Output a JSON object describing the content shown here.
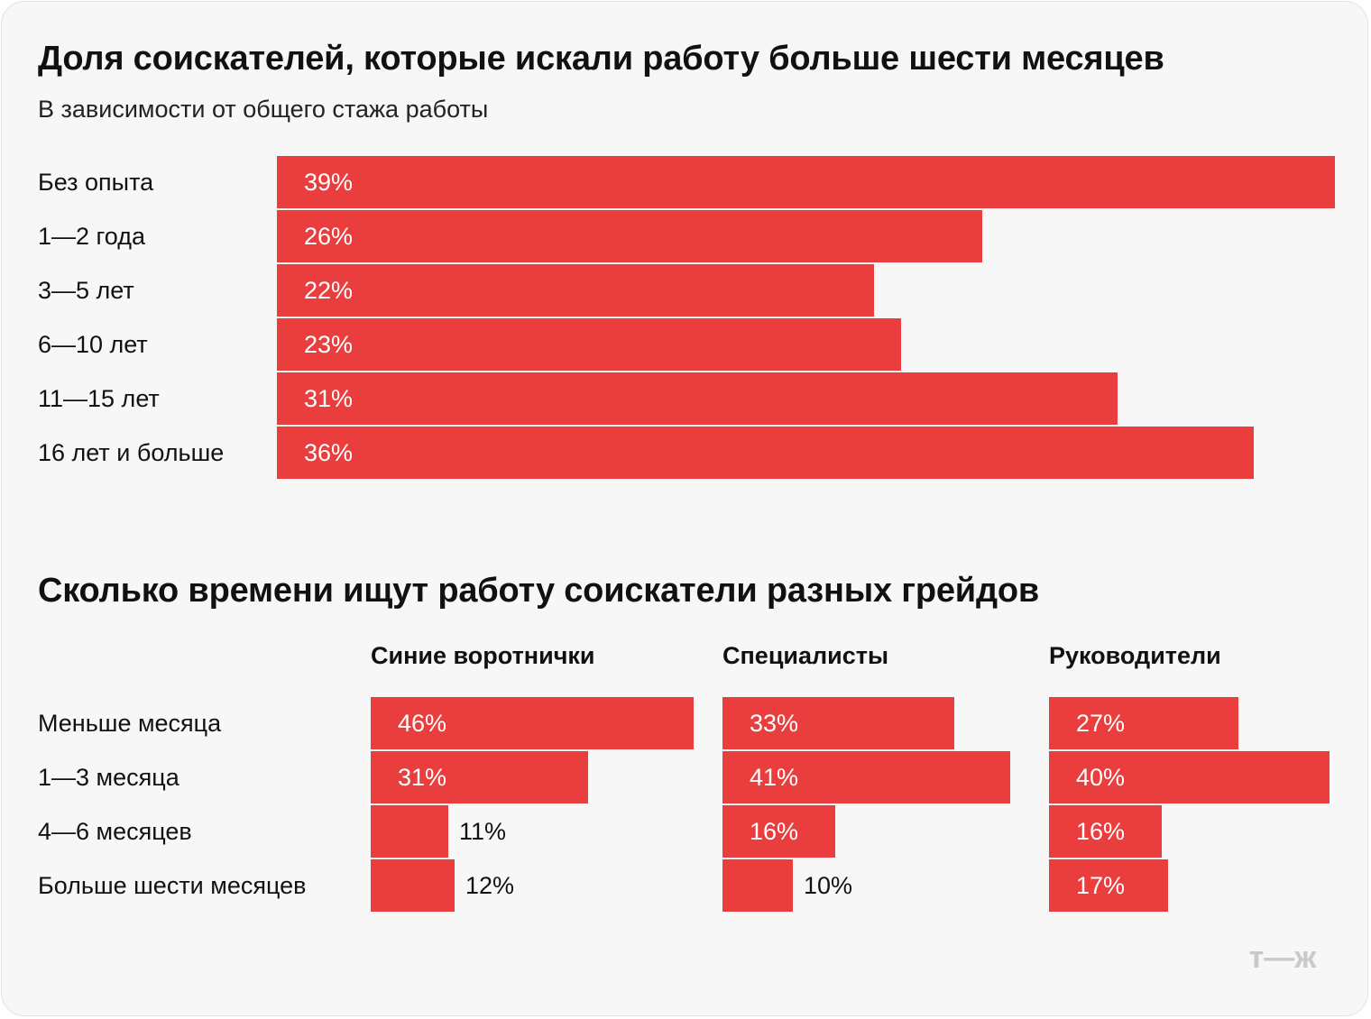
{
  "colors": {
    "bar": "#ea3e3e",
    "background": "#f7f7f7",
    "logo": "#c9c9c9"
  },
  "logo": "т—ж",
  "chart_data": [
    {
      "type": "bar",
      "orientation": "horizontal",
      "title": "Доля соискателей, которые искали работу больше шести месяцев",
      "subtitle": "В зависимости от общего стажа работы",
      "categories": [
        "Без опыта",
        "1—2 года",
        "3—5 лет",
        "6—10 лет",
        "11—15 лет",
        "16 лет и больше"
      ],
      "values": [
        39,
        26,
        22,
        23,
        31,
        36
      ],
      "labels": [
        "39%",
        "26%",
        "22%",
        "23%",
        "31%",
        "36%"
      ],
      "unit": "%",
      "xlim": [
        0,
        39
      ]
    },
    {
      "type": "bar",
      "orientation": "horizontal",
      "title": "Сколько времени ищут работу соискатели разных грейдов",
      "categories": [
        "Меньше месяца",
        "1—3 месяца",
        "4—6 месяцев",
        "Больше шести месяцев"
      ],
      "unit": "%",
      "xlim": [
        0,
        46
      ],
      "series": [
        {
          "name": "Синие воротнички",
          "values": [
            46,
            31,
            11,
            12
          ],
          "labels": [
            "46%",
            "31%",
            "11%",
            "12%"
          ]
        },
        {
          "name": "Специалисты",
          "values": [
            33,
            41,
            16,
            10
          ],
          "labels": [
            "33%",
            "41%",
            "16%",
            "10%"
          ]
        },
        {
          "name": "Руководители",
          "values": [
            27,
            40,
            16,
            17
          ],
          "labels": [
            "27%",
            "40%",
            "16%",
            "17%"
          ]
        }
      ]
    }
  ]
}
